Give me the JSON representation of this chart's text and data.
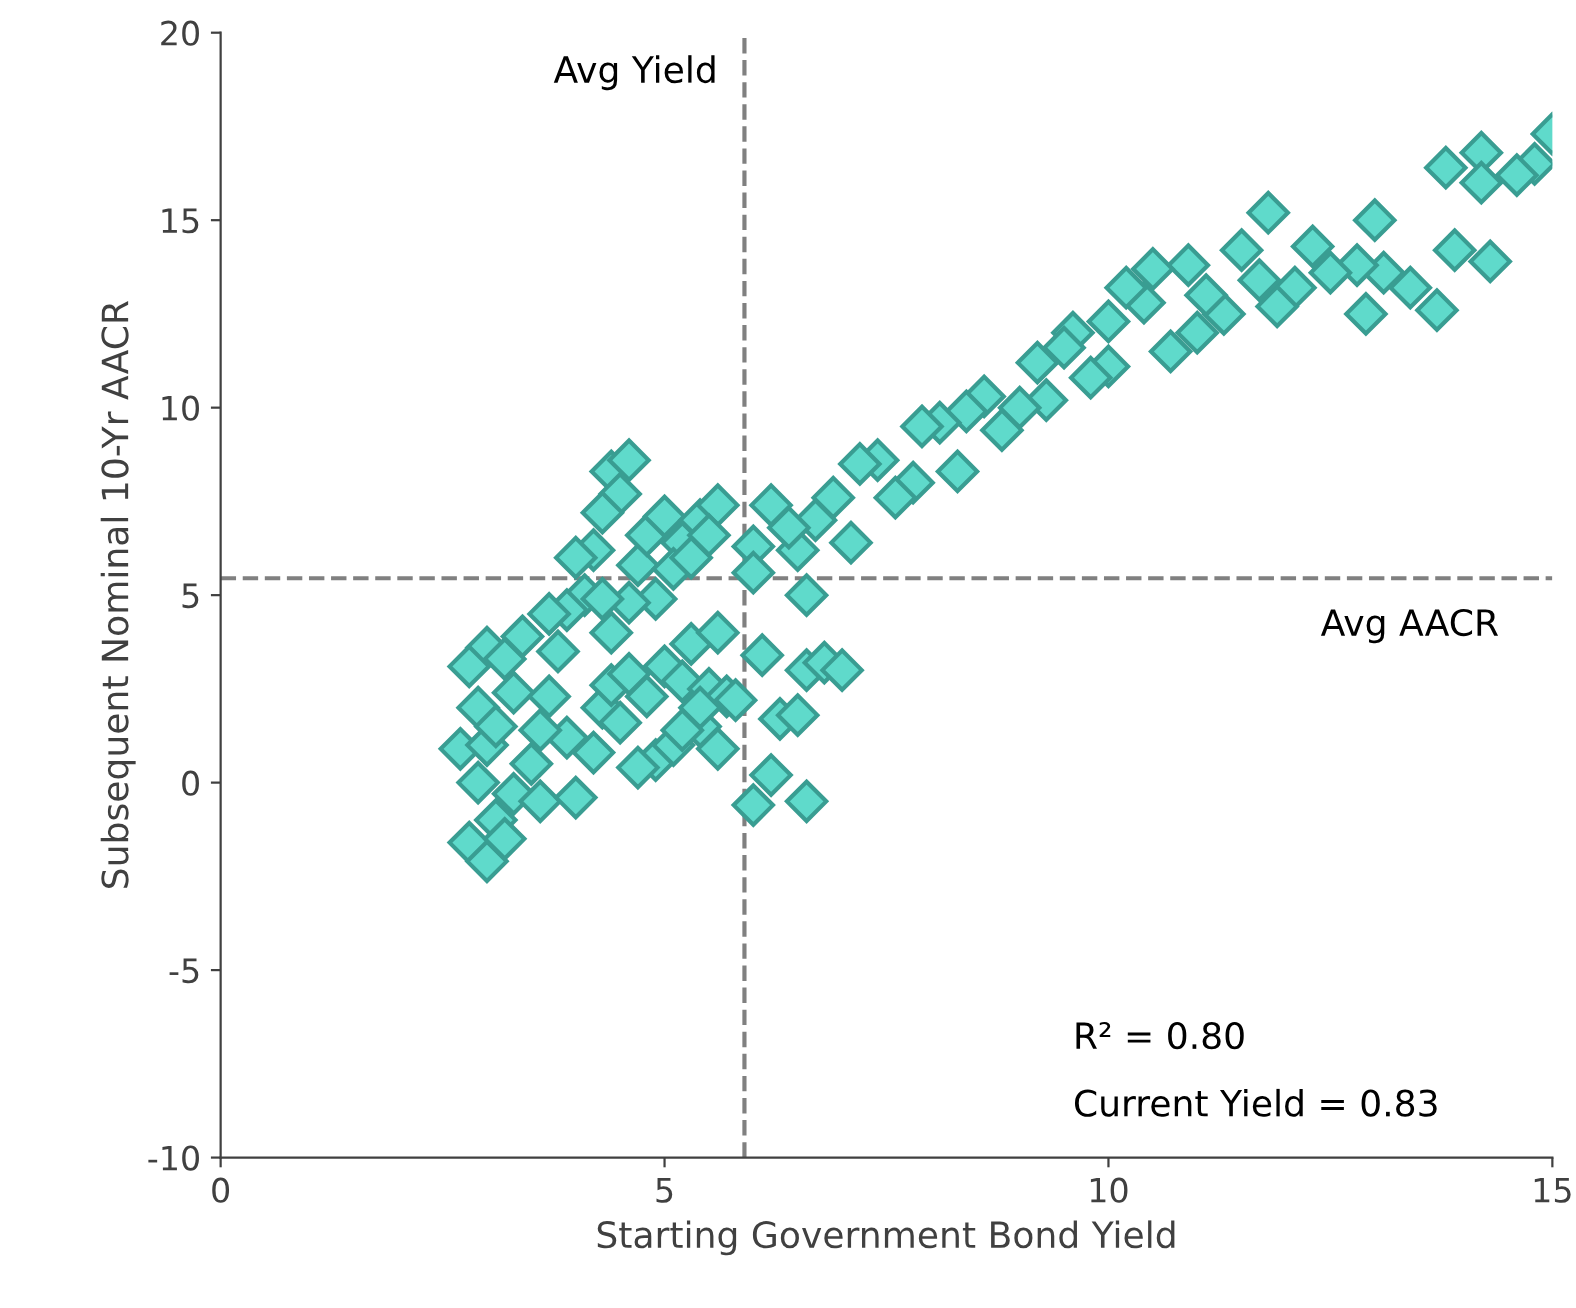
{
  "chart_data": {
    "type": "scatter",
    "xlabel": "Starting Government Bond Yield",
    "ylabel": "Subsequent Nominal 10-Yr AACR",
    "xlim": [
      0,
      15
    ],
    "ylim": [
      -10,
      20
    ],
    "xticks": [
      0,
      5,
      10,
      15
    ],
    "yticks": [
      -10,
      -5,
      0,
      5,
      10,
      15,
      20
    ],
    "grid": false,
    "marker": "diamond",
    "ref_lines": [
      {
        "axis": "x",
        "value": 5.9,
        "label": "Avg Yield",
        "color": "#808080",
        "line_style": "dashed"
      },
      {
        "axis": "y",
        "value": 5.45,
        "label": "Avg AACR",
        "color": "#808080",
        "line_style": "dashed"
      }
    ],
    "annotations": [
      "R² = 0.80",
      "Current Yield = 0.83"
    ],
    "series": [
      {
        "color": "#5fdacb",
        "x": [
          15.0,
          14.8,
          14.6,
          14.2,
          14.2,
          13.8,
          14.3,
          13.9,
          13.7,
          13.4,
          13.1,
          12.9,
          13.0,
          12.8,
          12.5,
          12.3,
          12.1,
          11.9,
          11.8,
          11.7,
          11.5,
          11.3,
          11.1,
          11.0,
          10.9,
          10.7,
          10.5,
          10.4,
          10.2,
          10.0,
          10.0,
          9.8,
          9.6,
          9.5,
          9.3,
          9.2,
          9.0,
          8.8,
          8.6,
          8.4,
          8.3,
          8.1,
          7.9,
          7.8,
          7.6,
          7.4,
          7.2,
          7.1,
          6.9,
          6.7,
          6.6,
          6.5,
          6.4,
          6.6,
          6.8,
          7.0,
          6.3,
          6.5,
          6.6,
          6.2,
          6.0,
          6.2,
          6.0,
          6.1,
          6.0,
          4.4,
          4.6,
          4.5,
          4.3,
          4.2,
          4.0,
          4.1,
          3.9,
          4.4,
          4.7,
          4.8,
          5.0,
          5.2,
          5.4,
          5.6,
          5.1,
          4.9,
          4.6,
          5.3,
          5.5,
          4.3,
          3.7,
          2.7,
          2.8,
          3.0,
          3.1,
          2.9,
          3.0,
          3.2,
          3.3,
          2.9,
          3.0,
          3.2,
          3.3,
          3.1,
          3.5,
          3.6,
          3.4,
          3.7,
          3.8,
          3.9,
          4.0,
          4.2,
          4.3,
          3.6,
          2.8,
          4.4,
          4.6,
          4.8,
          5.0,
          5.2,
          4.9,
          5.1,
          5.3,
          5.4,
          5.5,
          5.6,
          5.7,
          5.8,
          5.6,
          4.5,
          4.7,
          5.2,
          5.4
        ],
        "values": [
          17.3,
          16.5,
          16.2,
          16.8,
          16.0,
          16.4,
          13.9,
          14.2,
          12.6,
          13.2,
          13.6,
          12.5,
          15.0,
          13.8,
          13.6,
          14.3,
          13.2,
          12.7,
          15.2,
          13.4,
          14.2,
          12.5,
          13.0,
          12.0,
          13.8,
          11.5,
          13.7,
          12.8,
          13.2,
          12.3,
          11.1,
          10.8,
          12.0,
          11.6,
          10.2,
          11.2,
          10.0,
          9.4,
          10.3,
          9.9,
          8.3,
          9.6,
          9.5,
          8.0,
          7.6,
          8.6,
          8.5,
          6.4,
          7.6,
          7.0,
          5.0,
          6.2,
          6.8,
          3.0,
          3.2,
          3.0,
          1.7,
          1.8,
          -0.5,
          0.2,
          -0.6,
          7.4,
          6.3,
          3.4,
          5.6,
          8.3,
          8.6,
          7.7,
          7.2,
          6.2,
          6.0,
          5.0,
          4.6,
          4.0,
          5.8,
          6.6,
          7.1,
          6.4,
          7.0,
          7.4,
          5.7,
          4.9,
          4.8,
          6.0,
          6.6,
          4.9,
          4.5,
          0.9,
          -1.6,
          -2.1,
          -1.0,
          0.0,
          1.0,
          -1.5,
          -0.3,
          2.0,
          3.6,
          3.3,
          2.4,
          1.5,
          0.5,
          -0.5,
          3.9,
          2.3,
          3.5,
          1.2,
          -0.4,
          0.8,
          2.0,
          1.4,
          3.1,
          2.6,
          2.9,
          2.3,
          3.1,
          2.7,
          0.6,
          1.0,
          3.7,
          1.5,
          2.5,
          4.0,
          2.3,
          2.2,
          0.9,
          1.6,
          0.4,
          1.4,
          2.0
        ]
      }
    ]
  }
}
